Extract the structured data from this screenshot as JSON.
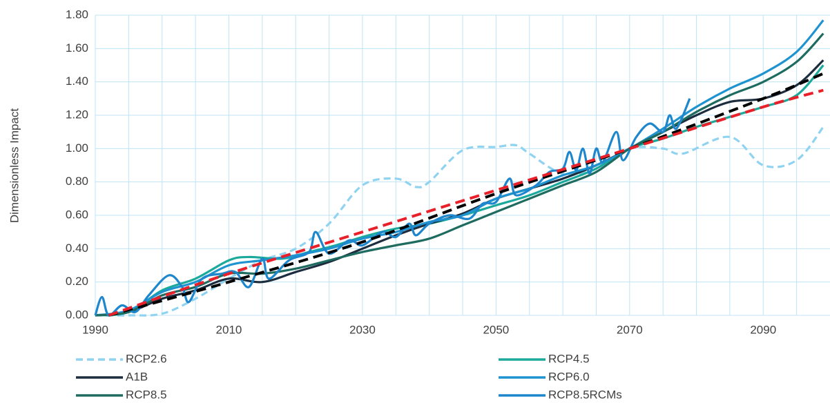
{
  "chart_data": {
    "type": "line",
    "y_label": "Dimensionless Impact",
    "xlim": [
      1990,
      2100
    ],
    "xticks": [
      1990,
      2010,
      2030,
      2050,
      2070,
      2090
    ],
    "x_minor_ticks": [
      1995,
      2000,
      2005,
      2015,
      2020,
      2025,
      2035,
      2040,
      2045,
      2055,
      2060,
      2065,
      2075,
      2080,
      2085,
      2095
    ],
    "ylim": [
      0,
      1.8
    ],
    "yticks": [
      {
        "value": 0,
        "label": "0.00"
      },
      {
        "value": 0.2,
        "label": "0.20"
      },
      {
        "value": 0.4,
        "label": "0.40"
      },
      {
        "value": 0.6,
        "label": "0.60"
      },
      {
        "value": 0.8,
        "label": "0.80"
      },
      {
        "value": 1.0,
        "label": "1.00"
      },
      {
        "value": 1.2,
        "label": "1.20"
      },
      {
        "value": 1.4,
        "label": "1.40"
      },
      {
        "value": 1.6,
        "label": "1.60"
      },
      {
        "value": 1.8,
        "label": "1.80"
      }
    ],
    "grid": true,
    "grid_color": "#bfe3f5",
    "legend": "bottom",
    "series": [
      {
        "name": "RCP2.6",
        "color": "#8fd3f0",
        "dash": true,
        "x": [
          1990,
          1995,
          2000,
          2005,
          2010,
          2015,
          2020,
          2025,
          2030,
          2035,
          2038,
          2040,
          2045,
          2050,
          2053,
          2055,
          2060,
          2065,
          2070,
          2075,
          2078,
          2085,
          2090,
          2095,
          2099
        ],
        "values": [
          0,
          0,
          0.01,
          0.1,
          0.22,
          0.33,
          0.4,
          0.55,
          0.78,
          0.82,
          0.77,
          0.8,
          0.99,
          1.01,
          1.02,
          0.97,
          0.85,
          0.88,
          1.0,
          1.0,
          0.97,
          1.07,
          0.9,
          0.93,
          1.13
        ]
      },
      {
        "name": "RCP4.5",
        "color": "#1aa99a",
        "x": [
          1990,
          1995,
          2000,
          2005,
          2010,
          2013,
          2018,
          2022,
          2026,
          2030,
          2035,
          2040,
          2045,
          2050,
          2055,
          2060,
          2065,
          2070,
          2075,
          2080,
          2085,
          2090,
          2095,
          2099
        ],
        "values": [
          0,
          0.02,
          0.15,
          0.22,
          0.33,
          0.35,
          0.34,
          0.38,
          0.42,
          0.47,
          0.52,
          0.55,
          0.6,
          0.66,
          0.72,
          0.8,
          0.88,
          1.0,
          1.06,
          1.13,
          1.19,
          1.25,
          1.32,
          1.5
        ]
      },
      {
        "name": "A1B",
        "color": "#1b2d3e",
        "x": [
          1990,
          1995,
          2000,
          2005,
          2010,
          2015,
          2020,
          2025,
          2030,
          2035,
          2040,
          2045,
          2050,
          2055,
          2060,
          2065,
          2070,
          2075,
          2080,
          2085,
          2090,
          2095,
          2099
        ],
        "values": [
          0,
          0.02,
          0.1,
          0.15,
          0.22,
          0.2,
          0.26,
          0.32,
          0.4,
          0.48,
          0.55,
          0.61,
          0.7,
          0.76,
          0.82,
          0.9,
          1.0,
          1.1,
          1.2,
          1.28,
          1.3,
          1.38,
          1.53
        ]
      },
      {
        "name": "RCP6.0",
        "color": "#1e93d0",
        "x": [
          1990,
          1995,
          2000,
          2005,
          2010,
          2015,
          2020,
          2025,
          2030,
          2035,
          2040,
          2045,
          2050,
          2055,
          2060,
          2065,
          2070,
          2075,
          2080,
          2085,
          2090,
          2095,
          2099
        ],
        "values": [
          0,
          0.03,
          0.14,
          0.2,
          0.3,
          0.33,
          0.36,
          0.4,
          0.46,
          0.5,
          0.56,
          0.6,
          0.7,
          0.76,
          0.84,
          0.9,
          1.0,
          1.12,
          1.25,
          1.36,
          1.45,
          1.58,
          1.77
        ]
      },
      {
        "name": "RCP8.5",
        "color": "#1e6b60",
        "x": [
          1990,
          1995,
          2000,
          2005,
          2010,
          2015,
          2020,
          2025,
          2030,
          2035,
          2040,
          2045,
          2050,
          2055,
          2060,
          2065,
          2070,
          2075,
          2080,
          2085,
          2090,
          2095,
          2099
        ],
        "values": [
          0,
          0.02,
          0.12,
          0.17,
          0.25,
          0.25,
          0.28,
          0.33,
          0.38,
          0.42,
          0.46,
          0.54,
          0.62,
          0.7,
          0.78,
          0.86,
          1.0,
          1.1,
          1.22,
          1.32,
          1.4,
          1.52,
          1.69
        ]
      },
      {
        "name": "RCP8.5RCMs",
        "color": "#1e86cc",
        "x": [
          1990,
          1991,
          1992,
          1994,
          1996,
          1998,
          2001,
          2003,
          2004,
          2006,
          2009,
          2011,
          2013,
          2015,
          2016,
          2019,
          2022,
          2023,
          2025,
          2028,
          2030,
          2033,
          2035,
          2037,
          2038,
          2040,
          2043,
          2046,
          2048,
          2050,
          2052,
          2053,
          2056,
          2058,
          2060,
          2061,
          2062,
          2063,
          2064,
          2065,
          2066,
          2068,
          2069,
          2071,
          2073,
          2075,
          2076,
          2077,
          2079
        ],
        "values": [
          0,
          0.11,
          0,
          0.06,
          0.02,
          0.12,
          0.24,
          0.17,
          0.08,
          0.22,
          0.25,
          0.26,
          0.17,
          0.34,
          0.22,
          0.33,
          0.38,
          0.5,
          0.37,
          0.45,
          0.42,
          0.5,
          0.47,
          0.55,
          0.48,
          0.55,
          0.6,
          0.58,
          0.67,
          0.68,
          0.82,
          0.72,
          0.78,
          0.86,
          0.88,
          0.98,
          0.87,
          1.0,
          0.85,
          1.0,
          0.92,
          1.1,
          0.93,
          1.07,
          1.15,
          1.1,
          1.2,
          1.12,
          1.3
        ]
      },
      {
        "color": "#000000",
        "dash": true,
        "x": [
          1992,
          2010,
          2030,
          2050,
          2070,
          2090,
          2099
        ],
        "values": [
          0,
          0.2,
          0.44,
          0.73,
          1.0,
          1.3,
          1.45
        ]
      },
      {
        "color": "#e8202a",
        "dash": true,
        "x": [
          1992,
          2010,
          2030,
          2050,
          2070,
          2090,
          2099
        ],
        "values": [
          0,
          0.25,
          0.5,
          0.75,
          1.0,
          1.25,
          1.35
        ]
      }
    ]
  }
}
